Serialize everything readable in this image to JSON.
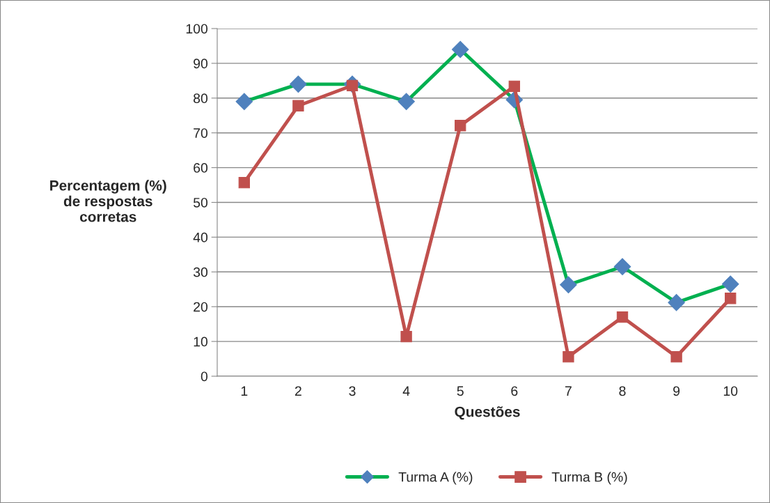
{
  "chart_data": {
    "type": "line",
    "xlabel": "Questões",
    "ylabel": "Percentagem (%)\nde respostas\ncorretas",
    "categories": [
      "1",
      "2",
      "3",
      "4",
      "5",
      "6",
      "7",
      "8",
      "9",
      "10"
    ],
    "series": [
      {
        "name": "Turma A (%)",
        "color": "#00b050",
        "marker": "diamond",
        "values": [
          79,
          84,
          84,
          79,
          94,
          79.5,
          26.3,
          31.5,
          21.2,
          26.5
        ]
      },
      {
        "name": "Turma B (%)",
        "color": "#c0504d",
        "marker": "square",
        "values": [
          55.7,
          77.8,
          83.6,
          11.4,
          72.1,
          83.4,
          5.6,
          17,
          5.6,
          22.4
        ]
      }
    ],
    "ylim": [
      0,
      100
    ],
    "yticks": [
      0,
      10,
      20,
      30,
      40,
      50,
      60,
      70,
      80,
      90,
      100
    ],
    "grid": "y",
    "legend": "bottom",
    "line_style": "solid"
  }
}
